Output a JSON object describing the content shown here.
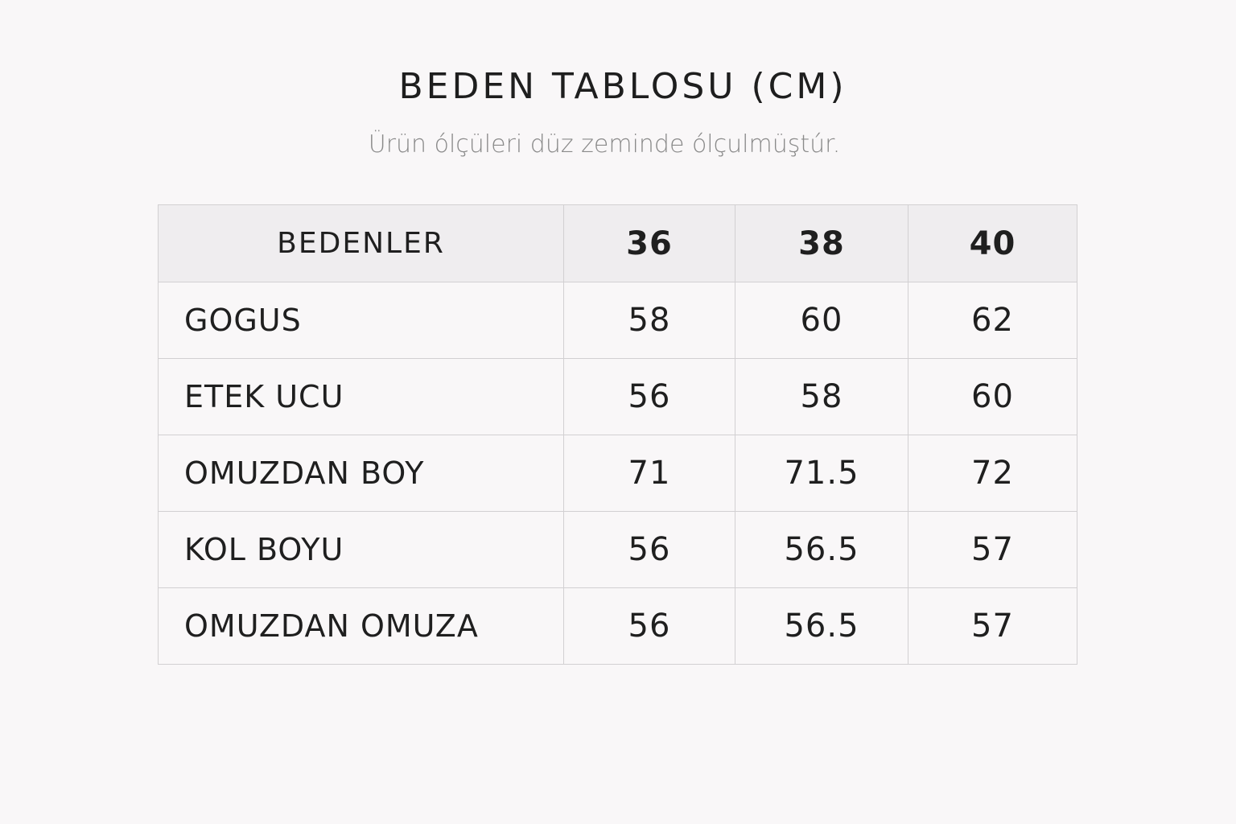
{
  "title": "BEDEN TABLOSU (CM)",
  "subtitle": "Ürün ólçüleri düz zeminde ólçulmüştúr.",
  "table": {
    "header": [
      "BEDENLER",
      "36",
      "38",
      "40"
    ],
    "rows": [
      [
        "GOGUS",
        "58",
        "60",
        "62"
      ],
      [
        "ETEK UCU",
        "56",
        "58",
        "60"
      ],
      [
        "OMUZDAN BOY",
        "71",
        "71.5",
        "72"
      ],
      [
        "KOL BOYU",
        "56",
        "56.5",
        "57"
      ],
      [
        "OMUZDAN OMUZA",
        "56",
        "56.5",
        "57"
      ]
    ]
  }
}
